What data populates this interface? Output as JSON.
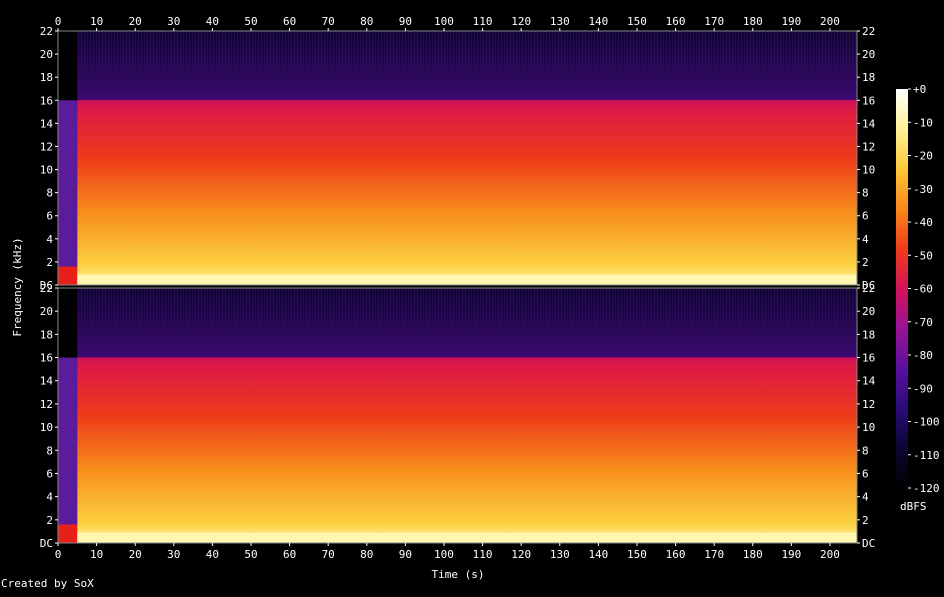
{
  "chart_data": {
    "type": "heatmap",
    "title": "",
    "xlabel": "Time (s)",
    "ylabel": "Frequency (kHz)",
    "xlim": [
      0,
      207
    ],
    "ylim": [
      0,
      22
    ],
    "x_ticks": [
      0,
      10,
      20,
      30,
      40,
      50,
      60,
      70,
      80,
      90,
      100,
      110,
      120,
      130,
      140,
      150,
      160,
      170,
      180,
      190,
      200
    ],
    "y_ticks": [
      {
        "value": 0,
        "label": "DC"
      },
      {
        "value": 2,
        "label": "2"
      },
      {
        "value": 4,
        "label": "4"
      },
      {
        "value": 6,
        "label": "6"
      },
      {
        "value": 8,
        "label": "8"
      },
      {
        "value": 10,
        "label": "10"
      },
      {
        "value": 12,
        "label": "12"
      },
      {
        "value": 14,
        "label": "14"
      },
      {
        "value": 16,
        "label": "16"
      },
      {
        "value": 18,
        "label": "18"
      },
      {
        "value": 20,
        "label": "20"
      },
      {
        "value": 22,
        "label": "22"
      }
    ],
    "channels": 2,
    "lowpass_cutoff_khz": 16,
    "active_span_s": [
      5,
      207
    ],
    "colorbar": {
      "unit": "dBFS",
      "range": [
        -120,
        0
      ],
      "ticks": [
        "+0",
        "-10",
        "-20",
        "-30",
        "-40",
        "-50",
        "-60",
        "-70",
        "-80",
        "-90",
        "-100",
        "-110",
        "-120"
      ]
    },
    "palette": [
      "#000000",
      "#0a0632",
      "#2a0c78",
      "#5a10a0",
      "#9a1296",
      "#d21458",
      "#f03c1a",
      "#f8881a",
      "#fcc838",
      "#fff296",
      "#ffffff"
    ]
  },
  "footer": {
    "credit": "Created by SoX"
  }
}
